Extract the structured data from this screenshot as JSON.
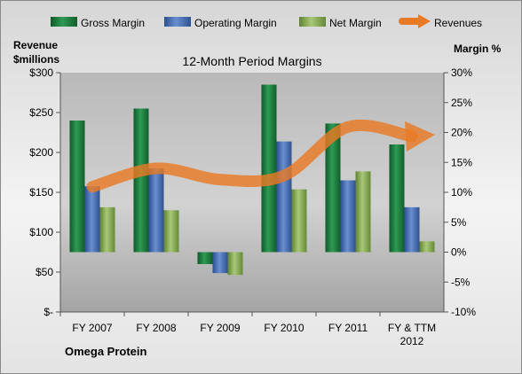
{
  "chart_data": {
    "type": "bar",
    "title": "12-Month Period Margins",
    "company": "Omega Protein",
    "y_left_label_line1": "Revenue",
    "y_left_label_line2": "$millions",
    "y_right_label": "Margin %",
    "categories": [
      "FY 2007",
      "FY 2008",
      "FY 2009",
      "FY 2010",
      "FY 2011",
      "FY & TTM 2012"
    ],
    "series": [
      {
        "name": "Gross Margin",
        "axis": "right",
        "color": "#1e7b3e",
        "values": [
          22,
          24,
          -2,
          28,
          21.5,
          18
        ]
      },
      {
        "name": "Operating Margin",
        "axis": "right",
        "color": "#4472c4",
        "values": [
          11,
          14,
          -3.5,
          18.5,
          12,
          7.5
        ]
      },
      {
        "name": "Net Margin",
        "axis": "right",
        "color": "#8db25a",
        "values": [
          7.5,
          7,
          -3.8,
          10.5,
          13.5,
          1.8
        ]
      },
      {
        "name": "Revenues",
        "axis": "left",
        "type": "line",
        "color": "#e87a25",
        "values": [
          157,
          180,
          166,
          171,
          232,
          220
        ]
      }
    ],
    "y_left_ticks": [
      "$300",
      "$250",
      "$200",
      "$150",
      "$100",
      "$50",
      "$-"
    ],
    "y_right_ticks": [
      "30%",
      "25%",
      "20%",
      "15%",
      "10%",
      "5%",
      "0%",
      "-5%",
      "-10%"
    ],
    "ylim_left": [
      0,
      300
    ],
    "ylim_right": [
      -10,
      30
    ],
    "legend_position": "top",
    "grid": false
  }
}
